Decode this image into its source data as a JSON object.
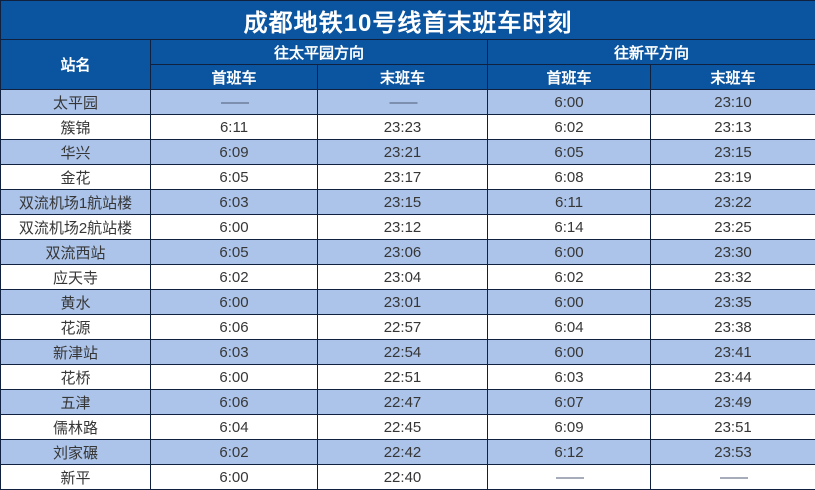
{
  "title": "成都地铁10号线首末班车时刻",
  "table": {
    "station_header": "站名",
    "direction_taipingyuan": "往太平园方向",
    "direction_xinping": "往新平方向",
    "first_train_label": "首班车",
    "last_train_label": "末班车",
    "no_service": "——",
    "rows": [
      {
        "station": "太平园",
        "d1_first": "——",
        "d1_last": "——",
        "d2_first": "6:00",
        "d2_last": "23:10"
      },
      {
        "station": "簇锦",
        "d1_first": "6:11",
        "d1_last": "23:23",
        "d2_first": "6:02",
        "d2_last": "23:13"
      },
      {
        "station": "华兴",
        "d1_first": "6:09",
        "d1_last": "23:21",
        "d2_first": "6:05",
        "d2_last": "23:15"
      },
      {
        "station": "金花",
        "d1_first": "6:05",
        "d1_last": "23:17",
        "d2_first": "6:08",
        "d2_last": "23:19"
      },
      {
        "station": "双流机场1航站楼",
        "d1_first": "6:03",
        "d1_last": "23:15",
        "d2_first": "6:11",
        "d2_last": "23:22"
      },
      {
        "station": "双流机场2航站楼",
        "d1_first": "6:00",
        "d1_last": "23:12",
        "d2_first": "6:14",
        "d2_last": "23:25"
      },
      {
        "station": "双流西站",
        "d1_first": "6:05",
        "d1_last": "23:06",
        "d2_first": "6:00",
        "d2_last": "23:30"
      },
      {
        "station": "应天寺",
        "d1_first": "6:02",
        "d1_last": "23:04",
        "d2_first": "6:02",
        "d2_last": "23:32"
      },
      {
        "station": "黄水",
        "d1_first": "6:00",
        "d1_last": "23:01",
        "d2_first": "6:00",
        "d2_last": "23:35"
      },
      {
        "station": "花源",
        "d1_first": "6:06",
        "d1_last": "22:57",
        "d2_first": "6:04",
        "d2_last": "23:38"
      },
      {
        "station": "新津站",
        "d1_first": "6:03",
        "d1_last": "22:54",
        "d2_first": "6:00",
        "d2_last": "23:41"
      },
      {
        "station": "花桥",
        "d1_first": "6:00",
        "d1_last": "22:51",
        "d2_first": "6:03",
        "d2_last": "23:44"
      },
      {
        "station": "五津",
        "d1_first": "6:06",
        "d1_last": "22:47",
        "d2_first": "6:07",
        "d2_last": "23:49"
      },
      {
        "station": "儒林路",
        "d1_first": "6:04",
        "d1_last": "22:45",
        "d2_first": "6:09",
        "d2_last": "23:51"
      },
      {
        "station": "刘家碾",
        "d1_first": "6:02",
        "d1_last": "22:42",
        "d2_first": "6:12",
        "d2_last": "23:53"
      },
      {
        "station": "新平",
        "d1_first": "6:00",
        "d1_last": "22:40",
        "d2_first": "——",
        "d2_last": "——"
      }
    ]
  },
  "colors": {
    "header_bg": "#0b55a0",
    "alt_row_bg": "#acc4e9",
    "plain_row_bg": "#ffffff",
    "border": "#10203f",
    "header_text": "#ffffff",
    "body_text": "#363636"
  }
}
